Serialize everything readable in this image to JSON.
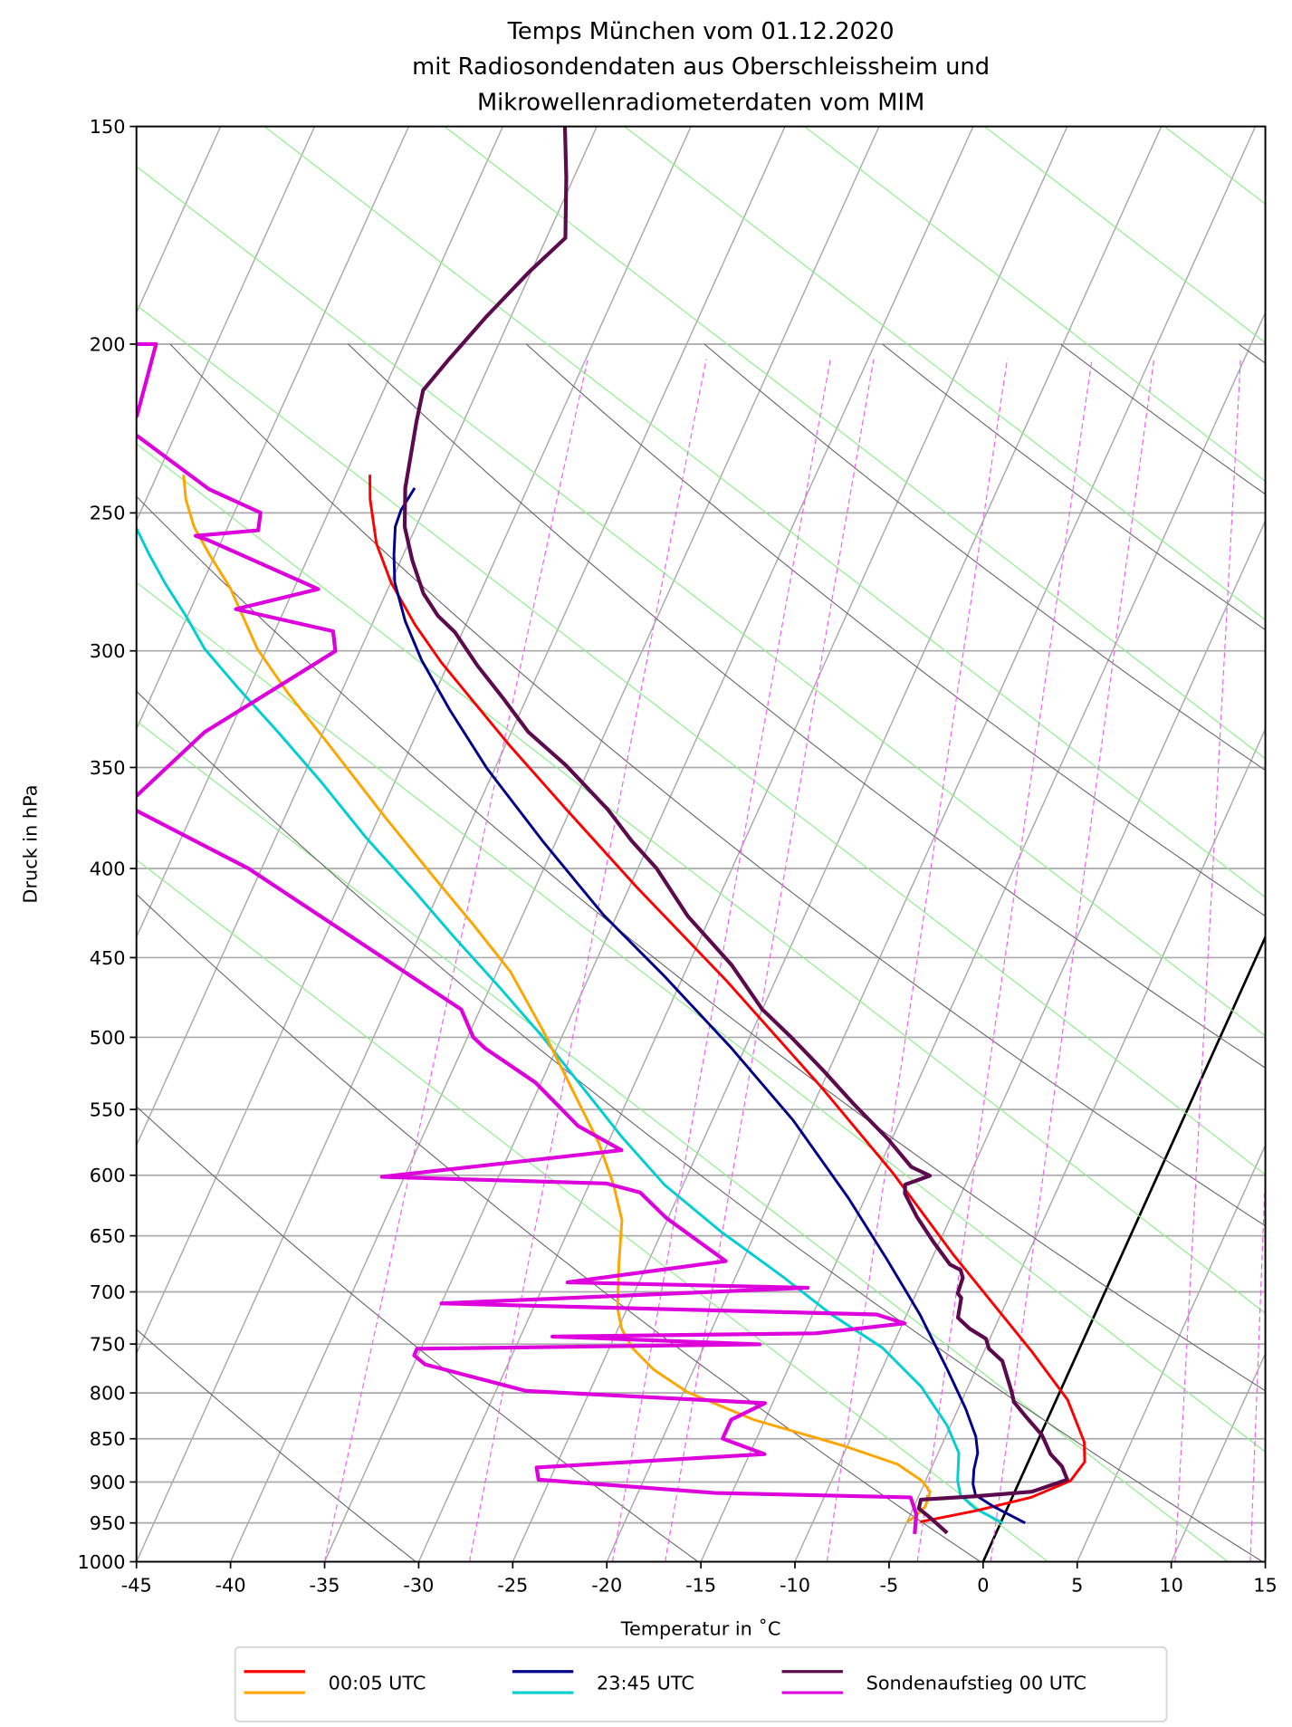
{
  "chart_data": {
    "type": "line",
    "subtype": "skew-T log-p diagram",
    "title": [
      "Temps München vom 01.12.2020",
      "mit Radiosondendaten aus Oberschleissheim und",
      "Mikrowellenradiometerdaten vom MIM"
    ],
    "xlabel": "Temperatur in ˚C",
    "ylabel": "Druck in hPa",
    "xlim": [
      -45,
      15
    ],
    "ylim": [
      1000,
      150
    ],
    "yscale": "log",
    "grid": true,
    "xticks": [
      "-45",
      "-40",
      "-35",
      "-30",
      "-25",
      "-20",
      "-15",
      "-10",
      "-5",
      "0",
      "5",
      "10",
      "15"
    ],
    "yticks": [
      "150",
      "200",
      "250",
      "300",
      "350",
      "400",
      "450",
      "500",
      "550",
      "600",
      "650",
      "700",
      "750",
      "800",
      "850",
      "900",
      "950",
      "1000"
    ],
    "legend_position": "bottom-center, below axes",
    "legend": [
      {
        "label": "00:05 UTC",
        "colors": [
          "#ff0000",
          "#ffa500"
        ]
      },
      {
        "label": "23:45 UTC",
        "colors": [
          "#00008b",
          "#00ced1"
        ]
      },
      {
        "label": "Sondenaufstieg 00 UTC",
        "colors": [
          "#5c0a4e",
          "#dd00dd"
        ]
      }
    ],
    "series": [
      {
        "name": "00:05 UTC Temperatur",
        "color": "#ff0000",
        "columns": [
          "pressure_hPa",
          "temperature_C"
        ],
        "points": [
          [
            237.7,
            -58.7
          ],
          [
            245.5,
            -58.1
          ],
          [
            260.3,
            -56.7
          ],
          [
            274,
            -55.0
          ],
          [
            289.8,
            -52.7
          ],
          [
            304.6,
            -50.4
          ],
          [
            321.1,
            -47.7
          ],
          [
            340.4,
            -44.7
          ],
          [
            370.1,
            -40.2
          ],
          [
            410.1,
            -34.6
          ],
          [
            463.9,
            -27.6
          ],
          [
            534,
            -20.0
          ],
          [
            598.6,
            -14.1
          ],
          [
            667.2,
            -8.9
          ],
          [
            756.9,
            -2.5
          ],
          [
            807.3,
            0.6
          ],
          [
            853.6,
            2.5
          ],
          [
            876.4,
            3.0
          ],
          [
            898.5,
            2.7
          ],
          [
            918.5,
            1.0
          ],
          [
            934.8,
            -1.6
          ],
          [
            948.6,
            -4.3
          ]
        ]
      },
      {
        "name": "00:05 UTC Taupunkt",
        "color": "#ffa500",
        "columns": [
          "pressure_hPa",
          "temperature_C"
        ],
        "points": [
          [
            237.7,
            -68.6
          ],
          [
            245.5,
            -67.9
          ],
          [
            254.6,
            -66.8
          ],
          [
            264.2,
            -65.3
          ],
          [
            276.1,
            -63.4
          ],
          [
            299.2,
            -60.5
          ],
          [
            317.3,
            -57.8
          ],
          [
            338.9,
            -54.5
          ],
          [
            372.8,
            -49.8
          ],
          [
            404.1,
            -45.7
          ],
          [
            431.7,
            -42.3
          ],
          [
            458.4,
            -39.3
          ],
          [
            496.2,
            -36.1
          ],
          [
            534,
            -33.3
          ],
          [
            574.6,
            -30.5
          ],
          [
            607.5,
            -28.7
          ],
          [
            636.7,
            -27.4
          ],
          [
            675.1,
            -26.5
          ],
          [
            715.9,
            -25.5
          ],
          [
            735,
            -24.8
          ],
          [
            753.6,
            -23.8
          ],
          [
            776,
            -22.1
          ],
          [
            799.1,
            -19.8
          ],
          [
            828.9,
            -15.6
          ],
          [
            857.3,
            -10.3
          ],
          [
            879,
            -6.9
          ],
          [
            898.5,
            -5.2
          ],
          [
            911.7,
            -4.5
          ],
          [
            929.3,
            -4.4
          ],
          [
            941.7,
            -4.7
          ],
          [
            948.6,
            -5.0
          ]
        ]
      },
      {
        "name": "23:45 UTC Temperatur",
        "color": "#00008b",
        "columns": [
          "pressure_hPa",
          "temperature_C"
        ],
        "points": [
          [
            241.9,
            -56.0
          ],
          [
            249.1,
            -56.2
          ],
          [
            254.6,
            -56.1
          ],
          [
            264.2,
            -55.5
          ],
          [
            274,
            -54.8
          ],
          [
            288.5,
            -53.3
          ],
          [
            303.7,
            -51.5
          ],
          [
            324.4,
            -48.8
          ],
          [
            350.6,
            -45.4
          ],
          [
            386.7,
            -40.6
          ],
          [
            425.4,
            -35.7
          ],
          [
            461.2,
            -31.0
          ],
          [
            507.3,
            -25.7
          ],
          [
            557.9,
            -20.7
          ],
          [
            618.3,
            -15.9
          ],
          [
            670.2,
            -12.4
          ],
          [
            721.2,
            -9.3
          ],
          [
            776,
            -6.5
          ],
          [
            816.9,
            -4.6
          ],
          [
            847.3,
            -3.4
          ],
          [
            866.2,
            -2.9
          ],
          [
            885.4,
            -2.7
          ],
          [
            902.5,
            -2.4
          ],
          [
            915.8,
            -2.0
          ],
          [
            929.3,
            -0.8
          ],
          [
            950,
            1.3
          ]
        ]
      },
      {
        "name": "23:45 UTC Taupunkt",
        "color": "#00ced1",
        "columns": [
          "pressure_hPa",
          "temperature_C"
        ],
        "points": [
          [
            250,
            -72
          ],
          [
            254.6,
            -69.9
          ],
          [
            264.2,
            -68.5
          ],
          [
            274.9,
            -66.9
          ],
          [
            286.4,
            -65.1
          ],
          [
            299.2,
            -63.3
          ],
          [
            315,
            -60.6
          ],
          [
            334,
            -57.4
          ],
          [
            356.8,
            -53.9
          ],
          [
            383.9,
            -50.2
          ],
          [
            410.1,
            -46.6
          ],
          [
            438.1,
            -43.1
          ],
          [
            468,
            -39.5
          ],
          [
            499.9,
            -36.0
          ],
          [
            534,
            -32.7
          ],
          [
            570.4,
            -29.4
          ],
          [
            607.5,
            -26.0
          ],
          [
            646,
            -21.9
          ],
          [
            685.1,
            -17.6
          ],
          [
            721.2,
            -14.0
          ],
          [
            753.6,
            -10.5
          ],
          [
            793.3,
            -7.5
          ],
          [
            835,
            -5.2
          ],
          [
            866.2,
            -3.9
          ],
          [
            898.5,
            -3.3
          ],
          [
            915.8,
            -2.8
          ],
          [
            932,
            -1.7
          ],
          [
            950,
            0.1
          ]
        ]
      },
      {
        "name": "Sondenaufstieg 00 UTC Temperatur",
        "color": "#5c0a4e",
        "columns": [
          "pressure_hPa",
          "temperature_C"
        ],
        "points": [
          [
            150,
            -56.7
          ],
          [
            160.5,
            -55.4
          ],
          [
            173.8,
            -54.0
          ],
          [
            181.8,
            -55.1
          ],
          [
            192.8,
            -56.3
          ],
          [
            204.4,
            -57.3
          ],
          [
            212.6,
            -57.9
          ],
          [
            221.6,
            -57.5
          ],
          [
            231.5,
            -57.0
          ],
          [
            241.9,
            -56.5
          ],
          [
            254.6,
            -55.6
          ],
          [
            266.1,
            -54.4
          ],
          [
            278.1,
            -53.0
          ],
          [
            286.4,
            -51.7
          ],
          [
            292.7,
            -50.4
          ],
          [
            305.9,
            -48.4
          ],
          [
            319.7,
            -46.2
          ],
          [
            334,
            -44.1
          ],
          [
            349,
            -41.3
          ],
          [
            370.1,
            -38.0
          ],
          [
            385.6,
            -36.0
          ],
          [
            400,
            -34.0
          ],
          [
            426,
            -31.2
          ],
          [
            454.4,
            -27.7
          ],
          [
            481.9,
            -25.0
          ],
          [
            499.9,
            -22.8
          ],
          [
            522.3,
            -20.3
          ],
          [
            545.8,
            -17.9
          ],
          [
            572.1,
            -15.2
          ],
          [
            593.4,
            -13.3
          ],
          [
            600.4,
            -12.1
          ],
          [
            607.5,
            -13.2
          ],
          [
            614.6,
            -13.0
          ],
          [
            633.9,
            -11.8
          ],
          [
            655.6,
            -10.3
          ],
          [
            675.1,
            -8.9
          ],
          [
            680.1,
            -8.2
          ],
          [
            687.1,
            -7.9
          ],
          [
            701.3,
            -7.8
          ],
          [
            705.5,
            -7.5
          ],
          [
            724.3,
            -7.2
          ],
          [
            735,
            -6.3
          ],
          [
            744.8,
            -5.2
          ],
          [
            754.7,
            -4.8
          ],
          [
            766.9,
            -3.8
          ],
          [
            797.9,
            -2.6
          ],
          [
            809.7,
            -2.2
          ],
          [
            824.1,
            -1.3
          ],
          [
            846.1,
            0.1
          ],
          [
            867.5,
            1.0
          ],
          [
            881.5,
            1.9
          ],
          [
            897.2,
            2.5
          ],
          [
            911.7,
            0.9
          ],
          [
            917.1,
            -2.0
          ],
          [
            921.2,
            -4.8
          ],
          [
            932,
            -4.7
          ],
          [
            943.1,
            -3.9
          ],
          [
            962.6,
            -2.6
          ]
        ]
      },
      {
        "name": "Sondenaufstieg 00 UTC Taupunkt",
        "color": "#dd00dd",
        "columns": [
          "pressure_hPa",
          "temperature_C"
        ],
        "points": [
          [
            200,
            -76
          ],
          [
            200,
            -73.2
          ],
          [
            219.9,
            -72.5
          ],
          [
            222.5,
            -76
          ],
          [
            225.8,
            -72.0
          ],
          [
            242.3,
            -66.9
          ],
          [
            249.9,
            -63.6
          ],
          [
            255.8,
            -63.3
          ],
          [
            257.7,
            -66.5
          ],
          [
            259.2,
            -65.7
          ],
          [
            276.5,
            -58.7
          ],
          [
            283.9,
            -62.6
          ],
          [
            292.3,
            -56.9
          ],
          [
            300.1,
            -56.3
          ],
          [
            311.3,
            -58.0
          ],
          [
            334,
            -61.3
          ],
          [
            363.6,
            -63.4
          ],
          [
            367,
            -66
          ],
          [
            370.7,
            -63.0
          ],
          [
            400,
            -55.7
          ],
          [
            481.9,
            -41.0
          ],
          [
            499.9,
            -39.7
          ],
          [
            507.3,
            -38.8
          ],
          [
            530.8,
            -35.3
          ],
          [
            562.1,
            -32.0
          ],
          [
            580.5,
            -29.1
          ],
          [
            601.3,
            -41.2
          ],
          [
            606.6,
            -29.1
          ],
          [
            613.8,
            -27.1
          ],
          [
            634.8,
            -25.1
          ],
          [
            672.1,
            -20.9
          ],
          [
            691.2,
            -28.8
          ],
          [
            696.2,
            -15.9
          ],
          [
            710.7,
            -35.0
          ],
          [
            721.2,
            -11.6
          ],
          [
            729.7,
            -9.9
          ],
          [
            739.4,
            -14.4
          ],
          [
            742.6,
            -28.3
          ],
          [
            750.3,
            -17.1
          ],
          [
            754.7,
            -35.2
          ],
          [
            761.3,
            -35.2
          ],
          [
            770.4,
            -34.4
          ],
          [
            797.9,
            -28.4
          ],
          [
            810.9,
            -15.4
          ],
          [
            828.9,
            -16.8
          ],
          [
            849.8,
            -16.8
          ],
          [
            867.5,
            -14.2
          ],
          [
            882.8,
            -26.0
          ],
          [
            897.2,
            -25.6
          ],
          [
            913.1,
            -15.9
          ],
          [
            918.5,
            -5.4
          ],
          [
            938.9,
            -4.7
          ],
          [
            964,
            -4.3
          ]
        ]
      }
    ]
  }
}
